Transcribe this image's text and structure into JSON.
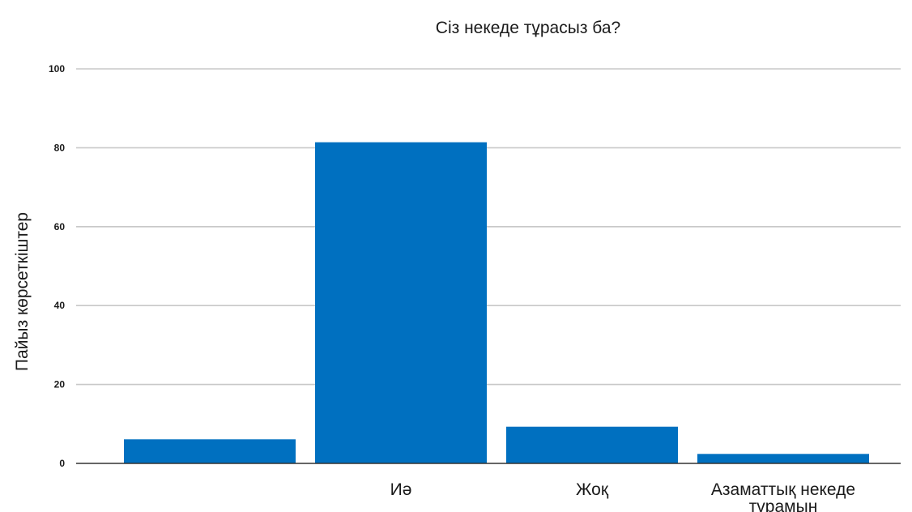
{
  "chart_data": {
    "type": "bar",
    "title": "Сіз некеде тұрасыз ба?",
    "xlabel": "",
    "ylabel": "Пайыз көрсеткіштер",
    "categories": [
      "",
      "Иә",
      "Жоқ",
      "Азаматтық некеде тұрамын"
    ],
    "category_lines": [
      [],
      [
        "Иә"
      ],
      [
        "Жоқ"
      ],
      [
        "Азаматтық некеде",
        "тұрамын"
      ]
    ],
    "values": [
      6.1,
      81.4,
      9.3,
      2.4
    ],
    "ylim": [
      0,
      100
    ],
    "yticks": [
      0,
      20,
      40,
      60,
      80,
      100
    ],
    "grid": true,
    "legend": "none",
    "bar_color": "#0070C0"
  }
}
